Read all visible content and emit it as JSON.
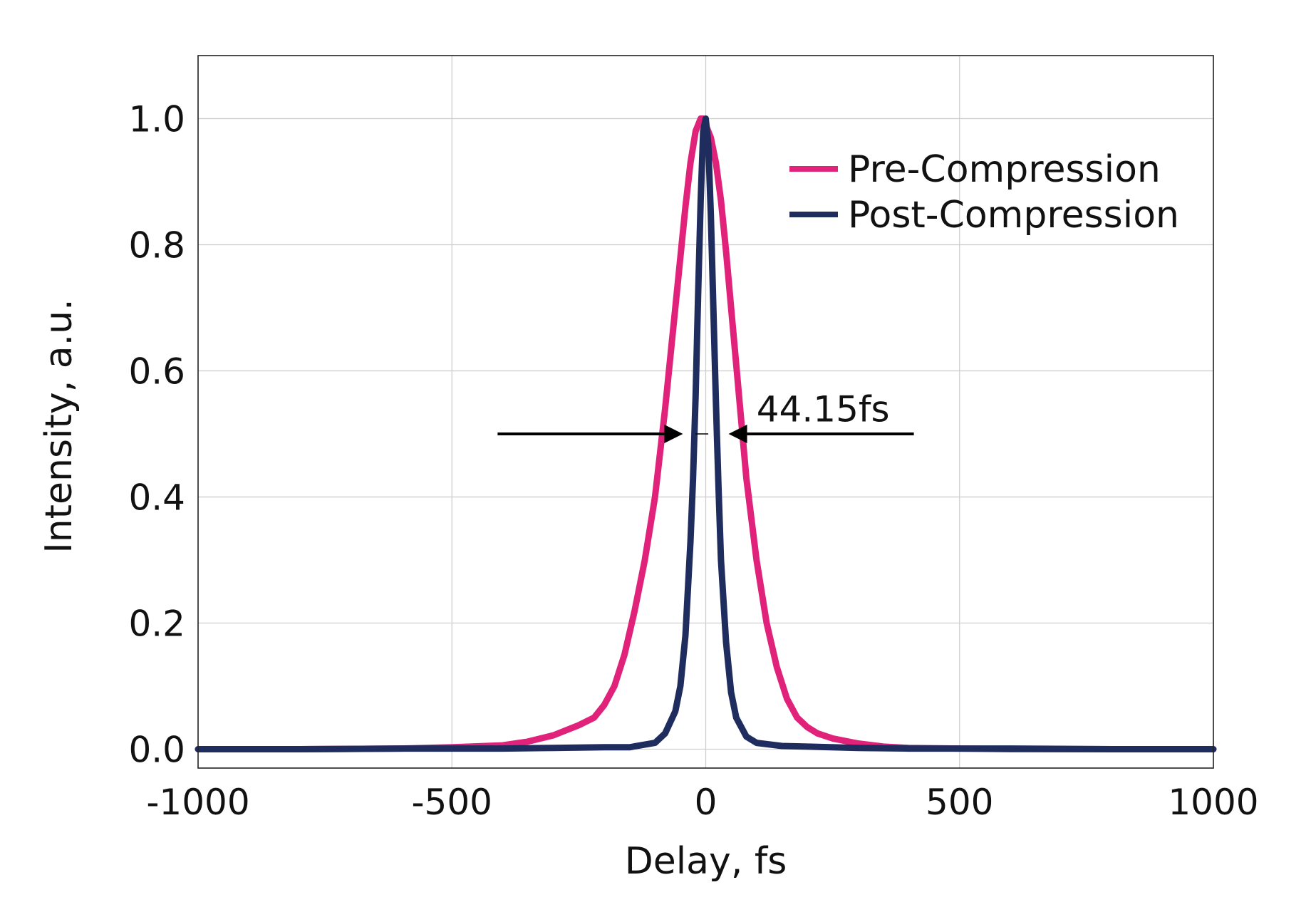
{
  "chart_data": {
    "type": "line",
    "title": "",
    "xlabel": "Delay, fs",
    "ylabel": "Intensity, a.u.",
    "xlim": [
      -1000,
      1000
    ],
    "ylim": [
      -0.03,
      1.1
    ],
    "xticks": [
      -1000,
      -500,
      0,
      500,
      1000
    ],
    "xtick_labels": [
      "-1000",
      "-500",
      "0",
      "500",
      "1000"
    ],
    "yticks": [
      0.0,
      0.2,
      0.4,
      0.6,
      0.8,
      1.0
    ],
    "ytick_labels": [
      "0.0",
      "0.2",
      "0.4",
      "0.6",
      "0.8",
      "1.0"
    ],
    "grid": true,
    "legend_position": "top-right",
    "series": [
      {
        "name": "Pre-Compression",
        "color": "#e0227a",
        "x": [
          -1000,
          -800,
          -600,
          -500,
          -400,
          -350,
          -300,
          -250,
          -220,
          -200,
          -180,
          -160,
          -140,
          -120,
          -100,
          -80,
          -60,
          -50,
          -40,
          -30,
          -20,
          -10,
          -5,
          0,
          10,
          20,
          30,
          40,
          50,
          60,
          80,
          100,
          120,
          140,
          160,
          180,
          200,
          220,
          250,
          300,
          350,
          400,
          500,
          600,
          800,
          1000
        ],
        "y": [
          0.0,
          0.0,
          0.001,
          0.003,
          0.006,
          0.012,
          0.022,
          0.038,
          0.05,
          0.07,
          0.1,
          0.15,
          0.22,
          0.3,
          0.4,
          0.54,
          0.7,
          0.78,
          0.86,
          0.93,
          0.98,
          1.0,
          1.0,
          0.99,
          0.97,
          0.93,
          0.87,
          0.79,
          0.7,
          0.61,
          0.43,
          0.3,
          0.2,
          0.13,
          0.08,
          0.05,
          0.035,
          0.025,
          0.017,
          0.009,
          0.004,
          0.002,
          0.001,
          0.0,
          0.0,
          0.0
        ]
      },
      {
        "name": "Post-Compression",
        "color": "#1f2c5e",
        "x": [
          -1000,
          -800,
          -600,
          -400,
          -300,
          -200,
          -150,
          -100,
          -80,
          -60,
          -50,
          -40,
          -30,
          -25,
          -20,
          -15,
          -10,
          -5,
          0,
          5,
          10,
          15,
          20,
          25,
          30,
          40,
          50,
          60,
          80,
          100,
          150,
          200,
          300,
          400,
          600,
          800,
          1000
        ],
        "y": [
          0.0,
          0.0,
          0.001,
          0.001,
          0.002,
          0.003,
          0.003,
          0.01,
          0.025,
          0.06,
          0.1,
          0.18,
          0.33,
          0.43,
          0.56,
          0.72,
          0.87,
          0.98,
          1.0,
          0.96,
          0.85,
          0.7,
          0.55,
          0.42,
          0.3,
          0.17,
          0.09,
          0.05,
          0.02,
          0.01,
          0.005,
          0.004,
          0.002,
          0.001,
          0.001,
          0.0,
          0.0
        ]
      }
    ],
    "annotations": [
      {
        "text": "44.15fs",
        "type": "fwhm-arrows",
        "y": 0.5,
        "left_arrow_x": [
          -410,
          -45
        ],
        "right_arrow_x": [
          410,
          45
        ],
        "gap_line_x": [
          -20,
          5
        ],
        "text_anchor_x": 100,
        "text_anchor_y": 0.54
      }
    ]
  }
}
